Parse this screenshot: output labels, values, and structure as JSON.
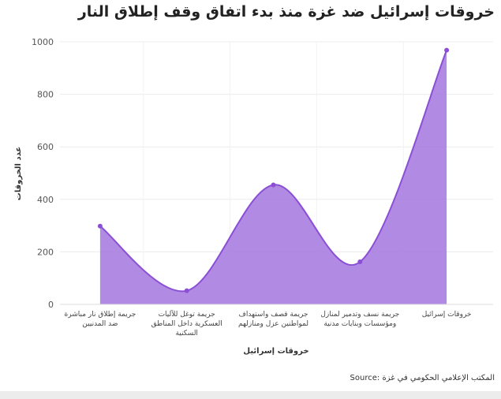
{
  "title": "خروقات إسرائيل ضد غزة منذ بدء اتفاق وقف إطلاق النار",
  "source": "Source: المكتب الإعلامي الحكومي في غزة",
  "chart_data": {
    "type": "area",
    "title": "خروقات إسرائيل ضد غزة منذ بدء اتفاق وقف إطلاق النار",
    "xlabel": "خروقات إسرائيل",
    "ylabel": "عدد الخروقات",
    "categories": [
      [
        "جريمة إطلاق نار مباشرة",
        "ضد المدنيين"
      ],
      [
        "جريمة توغل للآليات",
        "العسكرية داخل المناطق",
        "السكنية"
      ],
      [
        "جريمة قصف واستهداف",
        "لمواطنين عزل ومنازلهم"
      ],
      [
        "جريمة نسف وتدمير لمنازل",
        "ومؤسسات وبنايات مدنية"
      ],
      [
        "خروقات إسرائيل"
      ]
    ],
    "values": [
      298,
      52,
      455,
      162,
      968
    ],
    "ylim": [
      0,
      1000
    ],
    "yticks": [
      0,
      200,
      400,
      600,
      800,
      1000
    ],
    "grid": true,
    "colors": {
      "fill": "#a87de0",
      "line": "#8b4fd6"
    }
  }
}
